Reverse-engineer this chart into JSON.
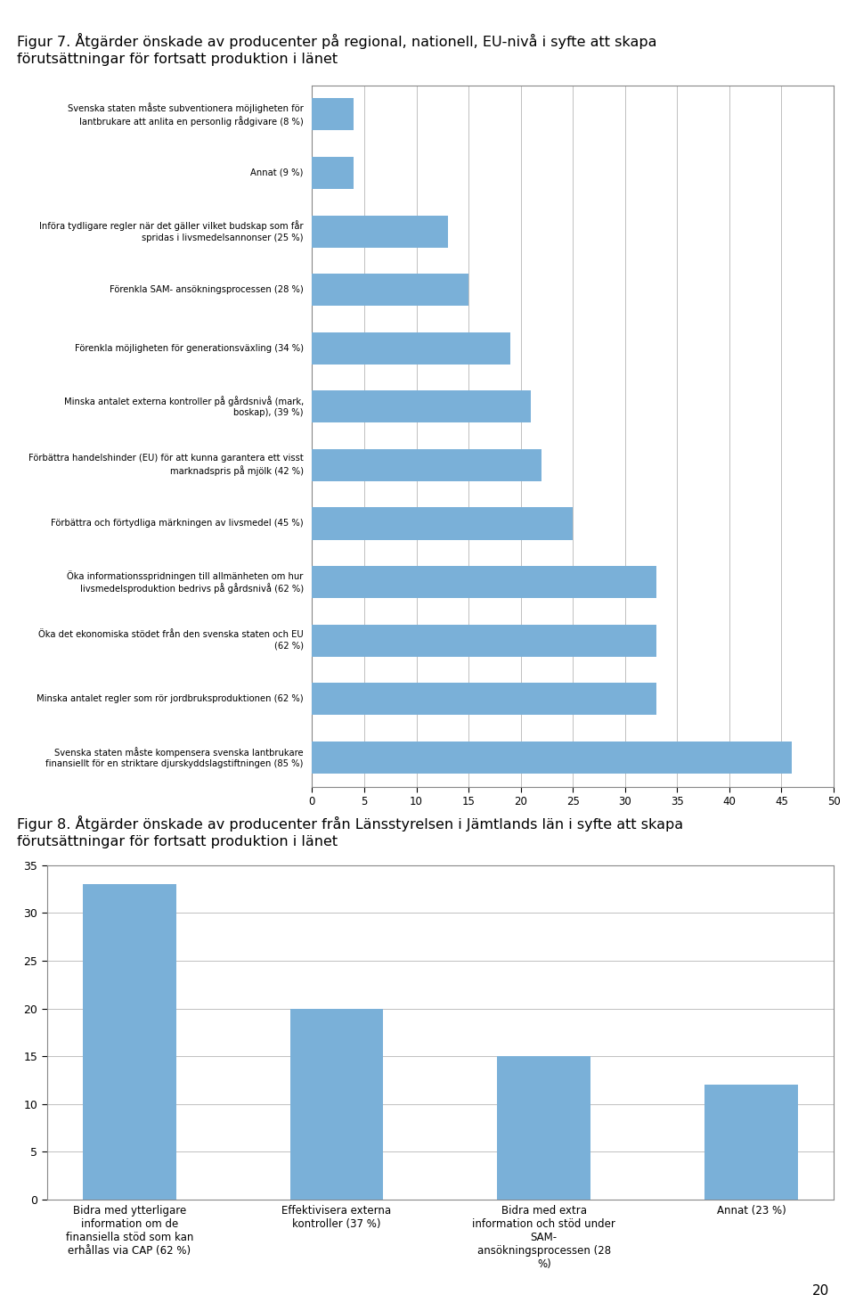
{
  "fig7_title_line1": "Figur 7. Åtgärder önskade av producenter på regional, nationell, EU-nivå i syfte att skapa",
  "fig7_title_line2": "förutsättningar för fortsatt produktion i länet",
  "fig7_labels": [
    "Svenska staten måste subventionera möjligheten för\nlantbrukare att anlita en personlig rådgivare (8 %)",
    "Annat (9 %)",
    "Införa tydligare regler när det gäller vilket budskap som får\nspridas i livsmedelsannonser (25 %)",
    "Förenkla SAM- ansökningsprocessen (28 %)",
    "Förenkla möjligheten för generationsväxling (34 %)",
    "Minska antalet externa kontroller på gårdsnivå (mark,\nboskap), (39 %)",
    "Förbättra handelshinder (EU) för att kunna garantera ett visst\nmarknadspris på mjölk (42 %)",
    "Förbättra och förtydliga märkningen av livsmedel (45 %)",
    "Öka informationsspridningen till allmänheten om hur\nlivsmedelsproduktion bedrivs på gårdsnivå (62 %)",
    "Öka det ekonomiska stödet från den svenska staten och EU\n(62 %)",
    "Minska antalet regler som rör jordbruksproduktionen (62 %)",
    "Svenska staten måste kompensera svenska lantbrukare\nfinansiellt för en striktare djurskyddslagstiftningen (85 %)"
  ],
  "fig7_values": [
    4,
    4,
    13,
    15,
    19,
    21,
    22,
    25,
    33,
    33,
    33,
    46
  ],
  "fig7_bar_color": "#7ab0d8",
  "fig7_xlim": [
    0,
    50
  ],
  "fig7_xticks": [
    0,
    5,
    10,
    15,
    20,
    25,
    30,
    35,
    40,
    45,
    50
  ],
  "fig8_title_line1": "Figur 8. Åtgärder önskade av producenter från Länsstyrelsen i Jämtlands län i syfte att skapa",
  "fig8_title_line2": "förutsättningar för fortsatt produktion i länet",
  "fig8_categories": [
    "Bidra med ytterligare\ninformation om de\nfinansiella stöd som kan\nerhållas via CAP (62 %)",
    "Effektivisera externa\nkontroller (37 %)",
    "Bidra med extra\ninformation och stöd under\nSAM-\nansökningsprocessen (28\n%)",
    "Annat (23 %)"
  ],
  "fig8_values": [
    33,
    20,
    15,
    12
  ],
  "fig8_bar_color": "#7ab0d8",
  "fig8_ylim": [
    0,
    35
  ],
  "fig8_yticks": [
    0,
    5,
    10,
    15,
    20,
    25,
    30,
    35
  ],
  "page_number": "20",
  "background_color": "#ffffff",
  "grid_color": "#c0c0c0",
  "text_color": "#000000",
  "border_color": "#888888"
}
